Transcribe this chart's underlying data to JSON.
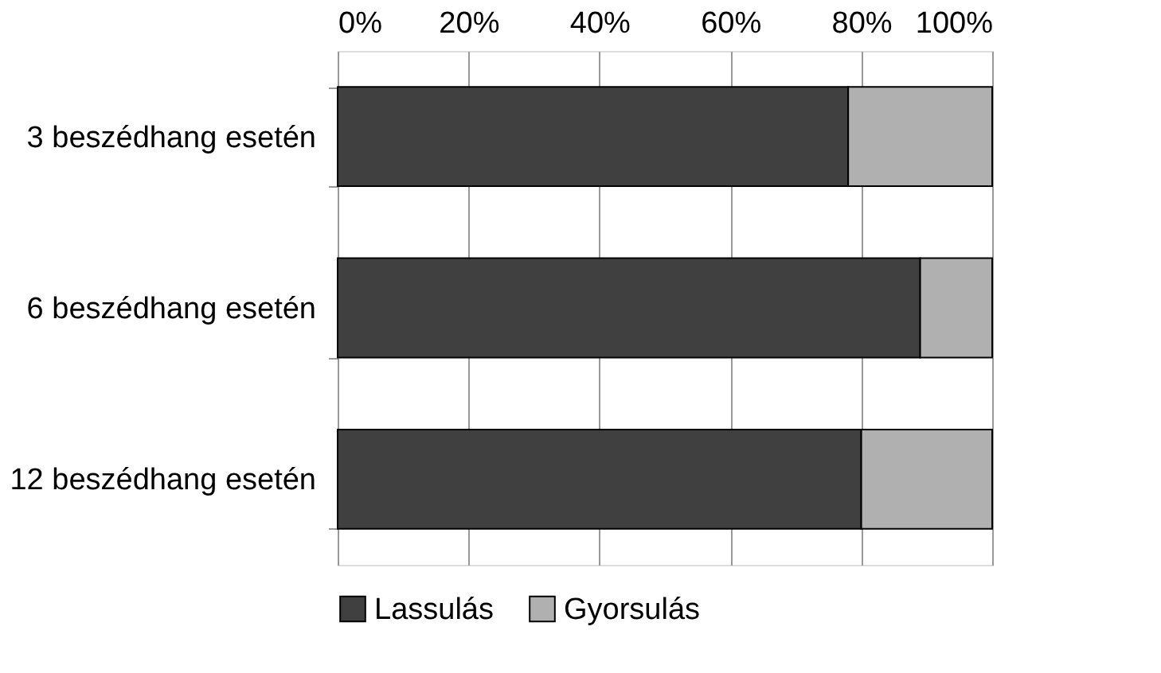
{
  "chart_data": {
    "type": "bar",
    "orientation": "horizontal",
    "stacked": true,
    "categories": [
      "3 beszédhang esetén",
      "6 beszédhang esetén",
      "12 beszédhang esetén"
    ],
    "series": [
      {
        "name": "Lassulás",
        "color": "#404040",
        "values": [
          78,
          89,
          80
        ]
      },
      {
        "name": "Gyorsulás",
        "color": "#b0b0b0",
        "values": [
          22,
          11,
          20
        ]
      }
    ],
    "xlim": [
      0,
      100
    ],
    "xticks": [
      {
        "value": 0,
        "label": "0%"
      },
      {
        "value": 20,
        "label": "20%"
      },
      {
        "value": 40,
        "label": "40%"
      },
      {
        "value": 60,
        "label": "60%"
      },
      {
        "value": 80,
        "label": "80%"
      },
      {
        "value": 100,
        "label": "100%"
      }
    ],
    "grid": "x",
    "legend": "bottom"
  }
}
